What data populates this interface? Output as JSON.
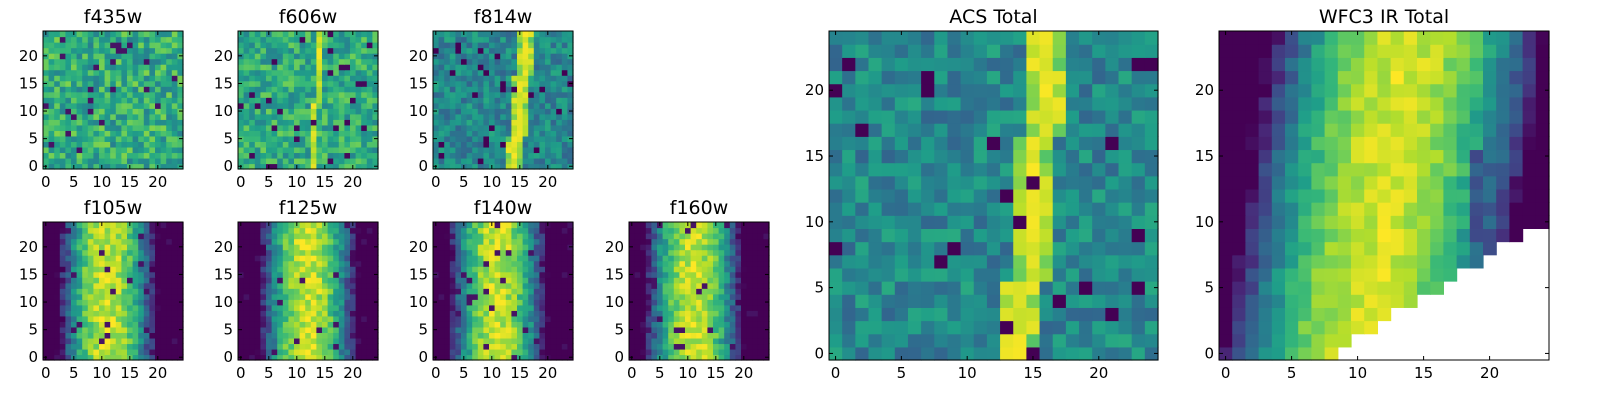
{
  "figure": {
    "colormap": "viridis",
    "background": "#ffffff"
  },
  "chart_data": [
    {
      "id": "f435w",
      "type": "heatmap",
      "title": "f435w",
      "grid_size": 25,
      "xlim": [
        0,
        24
      ],
      "ylim": [
        0,
        24
      ],
      "xticks": [
        0,
        5,
        10,
        15,
        20
      ],
      "yticks": [
        0,
        5,
        10,
        15,
        20
      ],
      "profile": "noise",
      "stripe_x": null,
      "grid": false
    },
    {
      "id": "f606w",
      "type": "heatmap",
      "title": "f606w",
      "grid_size": 25,
      "xlim": [
        0,
        24
      ],
      "ylim": [
        0,
        24
      ],
      "xticks": [
        0,
        5,
        10,
        15,
        20
      ],
      "yticks": [
        0,
        5,
        10,
        15,
        20
      ],
      "profile": "faint-stripe",
      "stripe_x": 14,
      "grid": false
    },
    {
      "id": "f814w",
      "type": "heatmap",
      "title": "f814w",
      "grid_size": 25,
      "xlim": [
        0,
        24
      ],
      "ylim": [
        0,
        24
      ],
      "xticks": [
        0,
        5,
        10,
        15,
        20
      ],
      "yticks": [
        0,
        5,
        10,
        15,
        20
      ],
      "profile": "stripe",
      "stripe_x": 15,
      "grid": false
    },
    {
      "id": "f105w",
      "type": "heatmap",
      "title": "f105w",
      "grid_size": 25,
      "xlim": [
        0,
        24
      ],
      "ylim": [
        0,
        24
      ],
      "xticks": [
        0,
        5,
        10,
        15,
        20
      ],
      "yticks": [
        0,
        5,
        10,
        15,
        20
      ],
      "profile": "blob",
      "stripe_x": 11,
      "grid": false
    },
    {
      "id": "f125w",
      "type": "heatmap",
      "title": "f125w",
      "grid_size": 25,
      "xlim": [
        0,
        24
      ],
      "ylim": [
        0,
        24
      ],
      "xticks": [
        0,
        5,
        10,
        15,
        20
      ],
      "yticks": [
        0,
        5,
        10,
        15,
        20
      ],
      "profile": "blob",
      "stripe_x": 12,
      "grid": false
    },
    {
      "id": "f140w",
      "type": "heatmap",
      "title": "f140w",
      "grid_size": 25,
      "xlim": [
        0,
        24
      ],
      "ylim": [
        0,
        24
      ],
      "xticks": [
        0,
        5,
        10,
        15,
        20
      ],
      "yticks": [
        0,
        5,
        10,
        15,
        20
      ],
      "profile": "blob",
      "stripe_x": 11,
      "grid": false
    },
    {
      "id": "f160w",
      "type": "heatmap",
      "title": "f160w",
      "grid_size": 25,
      "xlim": [
        0,
        24
      ],
      "ylim": [
        0,
        24
      ],
      "xticks": [
        0,
        5,
        10,
        15,
        20
      ],
      "yticks": [
        0,
        5,
        10,
        15,
        20
      ],
      "profile": "blob",
      "stripe_x": 11,
      "grid": false
    },
    {
      "id": "acs-total",
      "type": "heatmap",
      "title": "ACS Total",
      "grid_size": 25,
      "xlim": [
        0,
        24
      ],
      "ylim": [
        0,
        24
      ],
      "xticks": [
        0,
        5,
        10,
        15,
        20
      ],
      "yticks": [
        0,
        5,
        10,
        15,
        20
      ],
      "profile": "stripe",
      "stripe_x": 15,
      "grid": false
    },
    {
      "id": "wfc3-ir-total",
      "type": "heatmap",
      "title": "WFC3 IR Total",
      "grid_size": 25,
      "xlim": [
        0,
        24
      ],
      "ylim": [
        0,
        24
      ],
      "xticks": [
        0,
        5,
        10,
        15,
        20
      ],
      "yticks": [
        0,
        5,
        10,
        15,
        20
      ],
      "profile": "ir-total",
      "stripe_x": 12,
      "grid": false
    }
  ]
}
